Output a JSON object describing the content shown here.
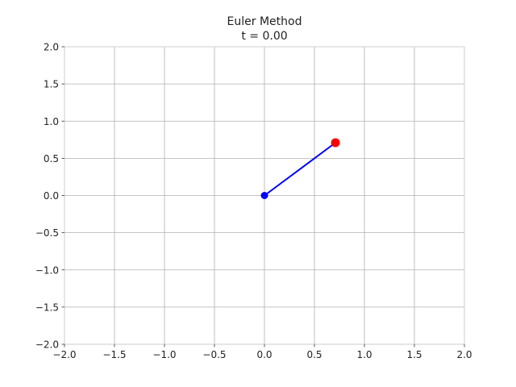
{
  "chart_data": {
    "type": "line",
    "title": "Euler Method",
    "subtitle": "t = 0.00",
    "xlabel": "",
    "ylabel": "",
    "xlim": [
      -2.0,
      2.0
    ],
    "ylim": [
      -2.0,
      2.0
    ],
    "grid": true,
    "xticks": [
      -2.0,
      -1.5,
      -1.0,
      -0.5,
      0.0,
      0.5,
      1.0,
      1.5,
      2.0
    ],
    "yticks": [
      -2.0,
      -1.5,
      -1.0,
      -0.5,
      0.0,
      0.5,
      1.0,
      1.5,
      2.0
    ],
    "xtick_labels": [
      "−2.0",
      "−1.5",
      "−1.0",
      "−0.5",
      "0.0",
      "0.5",
      "1.0",
      "1.5",
      "2.0"
    ],
    "ytick_labels": [
      "−2.0",
      "−1.5",
      "−1.0",
      "−0.5",
      "0.0",
      "0.5",
      "1.0",
      "1.5",
      "2.0"
    ],
    "rod": {
      "from": [
        0.0,
        0.0
      ],
      "to": [
        0.71,
        0.71
      ],
      "color": "#0000ff"
    },
    "pivot": {
      "x": 0.0,
      "y": 0.0,
      "color": "#0000ff"
    },
    "bob": {
      "x": 0.71,
      "y": 0.71,
      "color": "#ff0000"
    }
  }
}
